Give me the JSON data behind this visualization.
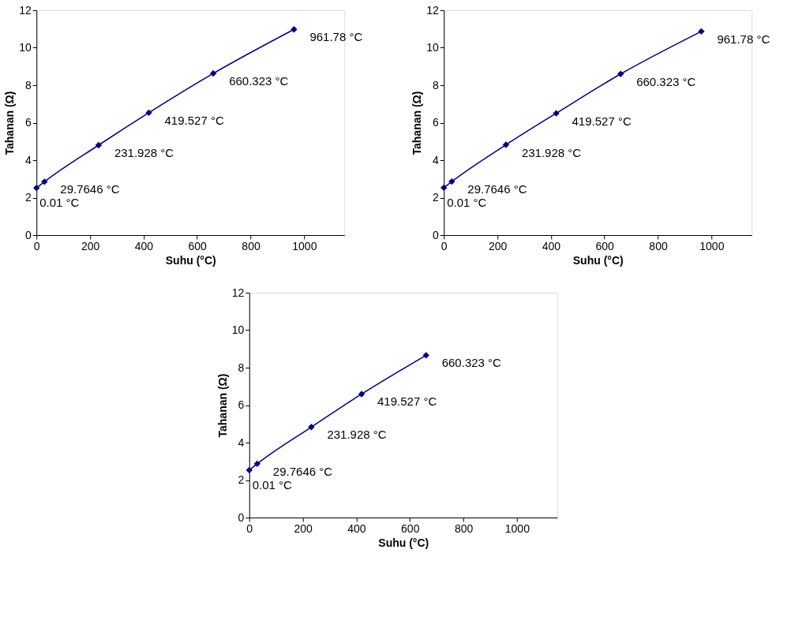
{
  "chart_data": [
    {
      "type": "line",
      "xlabel": "Suhu (°C)",
      "ylabel": "Tahanan (Ω)",
      "x": [
        0.01,
        29.7646,
        231.928,
        419.527,
        660.323,
        961.78
      ],
      "series": [
        {
          "color": "#000080",
          "values": [
            2.52,
            2.85,
            4.8,
            6.53,
            8.63,
            10.98
          ]
        }
      ],
      "xlim": [
        0,
        1150
      ],
      "xticks": [
        0,
        200,
        400,
        600,
        800,
        1000
      ],
      "ylim": [
        0,
        12
      ],
      "yticks": [
        0,
        2,
        4,
        6,
        8,
        10,
        12
      ],
      "grid": false,
      "marker": "diamond",
      "line_style": "solid",
      "annotations": [
        {
          "text": "0.01 °C",
          "x": 0.01,
          "y": 2.52
        },
        {
          "text": "29.7646 °C",
          "x": 29.7646,
          "y": 2.85
        },
        {
          "text": "231.928 °C",
          "x": 231.928,
          "y": 4.8
        },
        {
          "text": "419.527 °C",
          "x": 419.527,
          "y": 6.53
        },
        {
          "text": "660.323 °C",
          "x": 660.323,
          "y": 8.63
        },
        {
          "text": "961.78 °C",
          "x": 961.78,
          "y": 10.98
        }
      ]
    },
    {
      "type": "line",
      "xlabel": "Suhu (°C)",
      "ylabel": "Tahanan (Ω)",
      "x": [
        0.01,
        29.7646,
        231.928,
        419.527,
        660.323,
        961.78
      ],
      "series": [
        {
          "color": "#000080",
          "values": [
            2.53,
            2.86,
            4.82,
            6.5,
            8.6,
            10.87
          ]
        }
      ],
      "xlim": [
        0,
        1150
      ],
      "xticks": [
        0,
        200,
        400,
        600,
        800,
        1000
      ],
      "ylim": [
        0,
        12
      ],
      "yticks": [
        0,
        2,
        4,
        6,
        8,
        10,
        12
      ],
      "grid": false,
      "marker": "diamond",
      "line_style": "solid",
      "annotations": [
        {
          "text": "0.01 °C",
          "x": 0.01,
          "y": 2.53
        },
        {
          "text": "29.7646 °C",
          "x": 29.7646,
          "y": 2.86
        },
        {
          "text": "231.928 °C",
          "x": 231.928,
          "y": 4.82
        },
        {
          "text": "419.527 °C",
          "x": 419.527,
          "y": 6.5
        },
        {
          "text": "660.323 °C",
          "x": 660.323,
          "y": 8.6
        },
        {
          "text": "961.78 °C",
          "x": 961.78,
          "y": 10.87
        }
      ]
    },
    {
      "type": "line",
      "xlabel": "Suhu (°C)",
      "ylabel": "Tahanan (Ω)",
      "x": [
        0.01,
        29.7646,
        231.928,
        419.527,
        660.323
      ],
      "series": [
        {
          "color": "#000080",
          "values": [
            2.53,
            2.87,
            4.83,
            6.59,
            8.66
          ]
        }
      ],
      "xlim": [
        0,
        1150
      ],
      "xticks": [
        0,
        200,
        400,
        600,
        800,
        1000
      ],
      "ylim": [
        0,
        12
      ],
      "yticks": [
        0,
        2,
        4,
        6,
        8,
        10,
        12
      ],
      "grid": false,
      "marker": "diamond",
      "line_style": "solid",
      "annotations": [
        {
          "text": "0.01 °C",
          "x": 0.01,
          "y": 2.53
        },
        {
          "text": "29.7646 °C",
          "x": 29.7646,
          "y": 2.87
        },
        {
          "text": "231.928 °C",
          "x": 231.928,
          "y": 4.83
        },
        {
          "text": "419.527 °C",
          "x": 419.527,
          "y": 6.59
        },
        {
          "text": "660.323 °C",
          "x": 660.323,
          "y": 8.66
        }
      ]
    }
  ]
}
